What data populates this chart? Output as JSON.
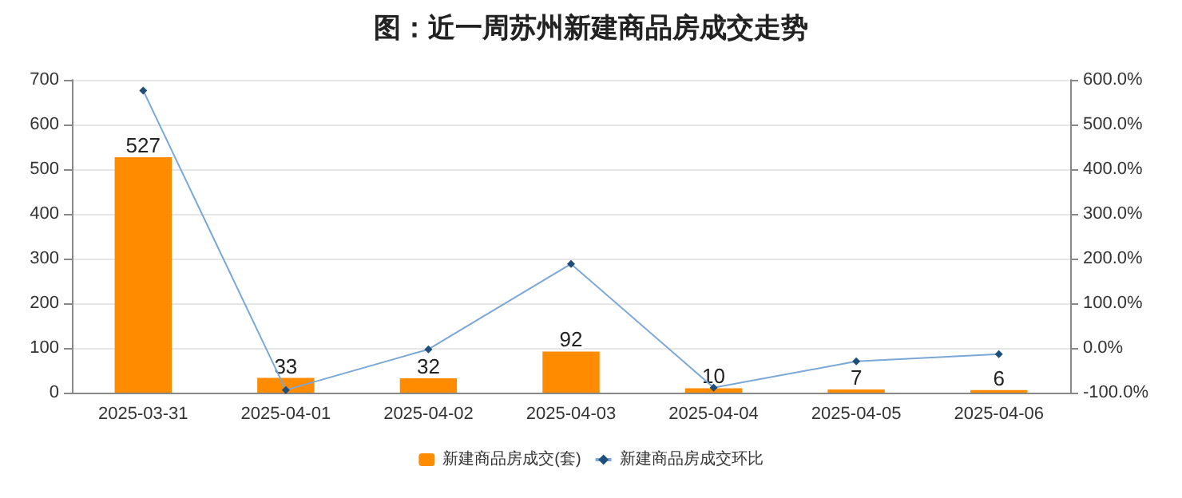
{
  "chart_data": {
    "type": "bar",
    "title": "图：近一周苏州新建商品房成交走势",
    "categories": [
      "2025-03-31",
      "2025-04-01",
      "2025-04-02",
      "2025-04-03",
      "2025-04-04",
      "2025-04-05",
      "2025-04-06"
    ],
    "series": [
      {
        "name": "新建商品房成交(套)",
        "color": "#ff8c00",
        "values": [
          527,
          33,
          32,
          92,
          10,
          7,
          6
        ],
        "data_labels": true
      },
      {
        "name": "新建商品房成交环比",
        "type": "line",
        "axis": "y2",
        "color": "#7ba7d7",
        "marker": "diamond",
        "values": [
          576,
          -94,
          -3,
          188,
          -89,
          -30,
          -14
        ]
      }
    ],
    "ylim": [
      0,
      700
    ],
    "yticks": [
      0,
      100,
      200,
      300,
      400,
      500,
      600,
      700
    ],
    "y2lim": [
      -100,
      600
    ],
    "y2ticks": [
      {
        "value": -100,
        "label": "-100.0%"
      },
      {
        "value": 0,
        "label": "0.0%"
      },
      {
        "value": 100,
        "label": "100.0%"
      },
      {
        "value": 200,
        "label": "200.0%"
      },
      {
        "value": 300,
        "label": "300.0%"
      },
      {
        "value": 400,
        "label": "400.0%"
      },
      {
        "value": 500,
        "label": "500.0%"
      },
      {
        "value": 600,
        "label": "600.0%"
      }
    ],
    "grid": "y",
    "legend": "bottom"
  }
}
